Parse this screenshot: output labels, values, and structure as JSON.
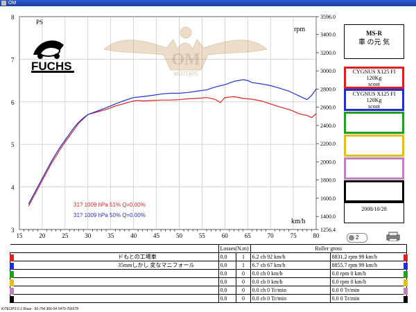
{
  "window": {
    "title": "OM"
  },
  "chart_data": {
    "type": "line",
    "xlabel": "km/h",
    "ylabel_left": "PS",
    "ylabel_right": "rpm",
    "xlim": [
      15,
      80
    ],
    "ylim_left": [
      3,
      8
    ],
    "ylim_right": [
      1256.4,
      3596.0
    ],
    "x_ticks": [
      "15",
      "20",
      "25",
      "30",
      "35",
      "40",
      "45",
      "50",
      "55",
      "60",
      "65",
      "70",
      "75",
      "80"
    ],
    "y_left_ticks": [
      "3",
      "4",
      "5",
      "6",
      "7",
      "8"
    ],
    "y_right_ticks": [
      "1256.4",
      "1400.0",
      "1600.0",
      "1800.0",
      "2000.0",
      "2200.0",
      "2400.0",
      "2600.0",
      "2800.0",
      "3000.0",
      "3200.0",
      "3400.0",
      "3596.0"
    ],
    "series": [
      {
        "color": "#e02020",
        "x": [
          17,
          18,
          19,
          20,
          21,
          22,
          23,
          24,
          25,
          26,
          27,
          28,
          29,
          30,
          32,
          34,
          36,
          38,
          40,
          41,
          42,
          44,
          46,
          48,
          50,
          52,
          54,
          56,
          57,
          58,
          59,
          60,
          62,
          64,
          66,
          68,
          70,
          72,
          74,
          75,
          76,
          77,
          78,
          79,
          80
        ],
        "y": [
          3.55,
          3.75,
          3.95,
          4.15,
          4.35,
          4.55,
          4.72,
          4.9,
          5.05,
          5.2,
          5.35,
          5.5,
          5.6,
          5.7,
          5.76,
          5.82,
          5.9,
          5.96,
          6.02,
          6.03,
          6.02,
          6.03,
          6.04,
          6.04,
          6.05,
          6.07,
          6.08,
          6.1,
          6.08,
          6.05,
          5.98,
          6.1,
          6.12,
          6.08,
          6.06,
          6.02,
          5.95,
          5.88,
          5.82,
          5.78,
          5.73,
          5.7,
          5.68,
          5.63,
          5.72
        ]
      },
      {
        "color": "#2030d0",
        "x": [
          17,
          18,
          19,
          20,
          21,
          22,
          23,
          24,
          25,
          26,
          27,
          28,
          29,
          30,
          32,
          34,
          36,
          38,
          40,
          42,
          44,
          46,
          48,
          50,
          52,
          54,
          56,
          58,
          60,
          62,
          63,
          64,
          65,
          66,
          68,
          70,
          72,
          74,
          75,
          76,
          77,
          78,
          79,
          80
        ],
        "y": [
          3.6,
          3.8,
          4.0,
          4.2,
          4.4,
          4.6,
          4.78,
          4.95,
          5.1,
          5.25,
          5.4,
          5.52,
          5.62,
          5.7,
          5.78,
          5.86,
          5.95,
          6.03,
          6.1,
          6.12,
          6.15,
          6.18,
          6.2,
          6.2,
          6.22,
          6.25,
          6.28,
          6.35,
          6.4,
          6.48,
          6.5,
          6.52,
          6.5,
          6.45,
          6.42,
          6.38,
          6.32,
          6.25,
          6.2,
          6.15,
          6.1,
          6.05,
          6.15,
          6.3
        ]
      }
    ],
    "annotations": [
      {
        "text": "31? 1009 hPa  51%   Q=0.00%",
        "color": "#e02020"
      },
      {
        "text": "31? 1009 hPa  50%   Q=0.00%",
        "color": "#2030d0"
      }
    ],
    "grid": true
  },
  "logos": {
    "fuchs": "FUCHS",
    "watermark": "OM",
    "watermark_sub": "MOTORS"
  },
  "right_panel": {
    "title": "MS-R",
    "subtitle": "車 の元 気",
    "boxes": [
      {
        "border": "#e02020",
        "lines": [
          "CYGNUS X125 FI",
          "120Kg",
          "scoot"
        ]
      },
      {
        "border": "#2030d0",
        "lines": [
          "CYGNUS X125 FI",
          "120Kg",
          "scoot"
        ]
      },
      {
        "border": "#20a020",
        "lines": []
      },
      {
        "border": "#e0c020",
        "lines": []
      },
      {
        "border": "#c080c0",
        "lines": []
      },
      {
        "border": "#000000",
        "lines": []
      }
    ],
    "date": "2008/10/28",
    "zoom_value": "2"
  },
  "table": {
    "header_losses": "Losses(N.m)",
    "header_roller": "Roller gross",
    "rows": [
      {
        "color": "#e02020",
        "name": "ドもとの工場車",
        "l1": "0.0",
        "l2": "1",
        "ch": "6.2 ch 92 km/h",
        "rpm": "8831.2 rpm 99 km/h"
      },
      {
        "color": "#2030d0",
        "name": "35mmしかし 変なマニフォール",
        "l1": "0.0",
        "l2": "1",
        "ch": "6.7 ch 67 km/h",
        "rpm": "8855.7 rpm 99 km/h"
      },
      {
        "color": "#20a020",
        "name": "",
        "l1": "0.0",
        "l2": "0",
        "ch": "0.0 ch 0 km/h",
        "rpm": "0.0 rpm 0 km/h"
      },
      {
        "color": "#e0c020",
        "name": "",
        "l1": "0.0",
        "l2": "0",
        "ch": "0.0 ch 0 km/h",
        "rpm": "0.0 rpm 0 km/h"
      },
      {
        "color": "#c080c0",
        "name": "",
        "l1": "0.0",
        "l2": "0",
        "ch": "0.0 ch 0 Tr/min",
        "rpm": "0.0  0 Tr/min"
      },
      {
        "color": "#000000",
        "name": "",
        "l1": "0.0",
        "l2": "0",
        "ch": "0.0 ch 0 Tr/min",
        "rpm": "0.0  0 Tr/min"
      }
    ]
  },
  "footer": "KITEOPS 6.1  Roue : 56-704 366-04 0470-766678"
}
